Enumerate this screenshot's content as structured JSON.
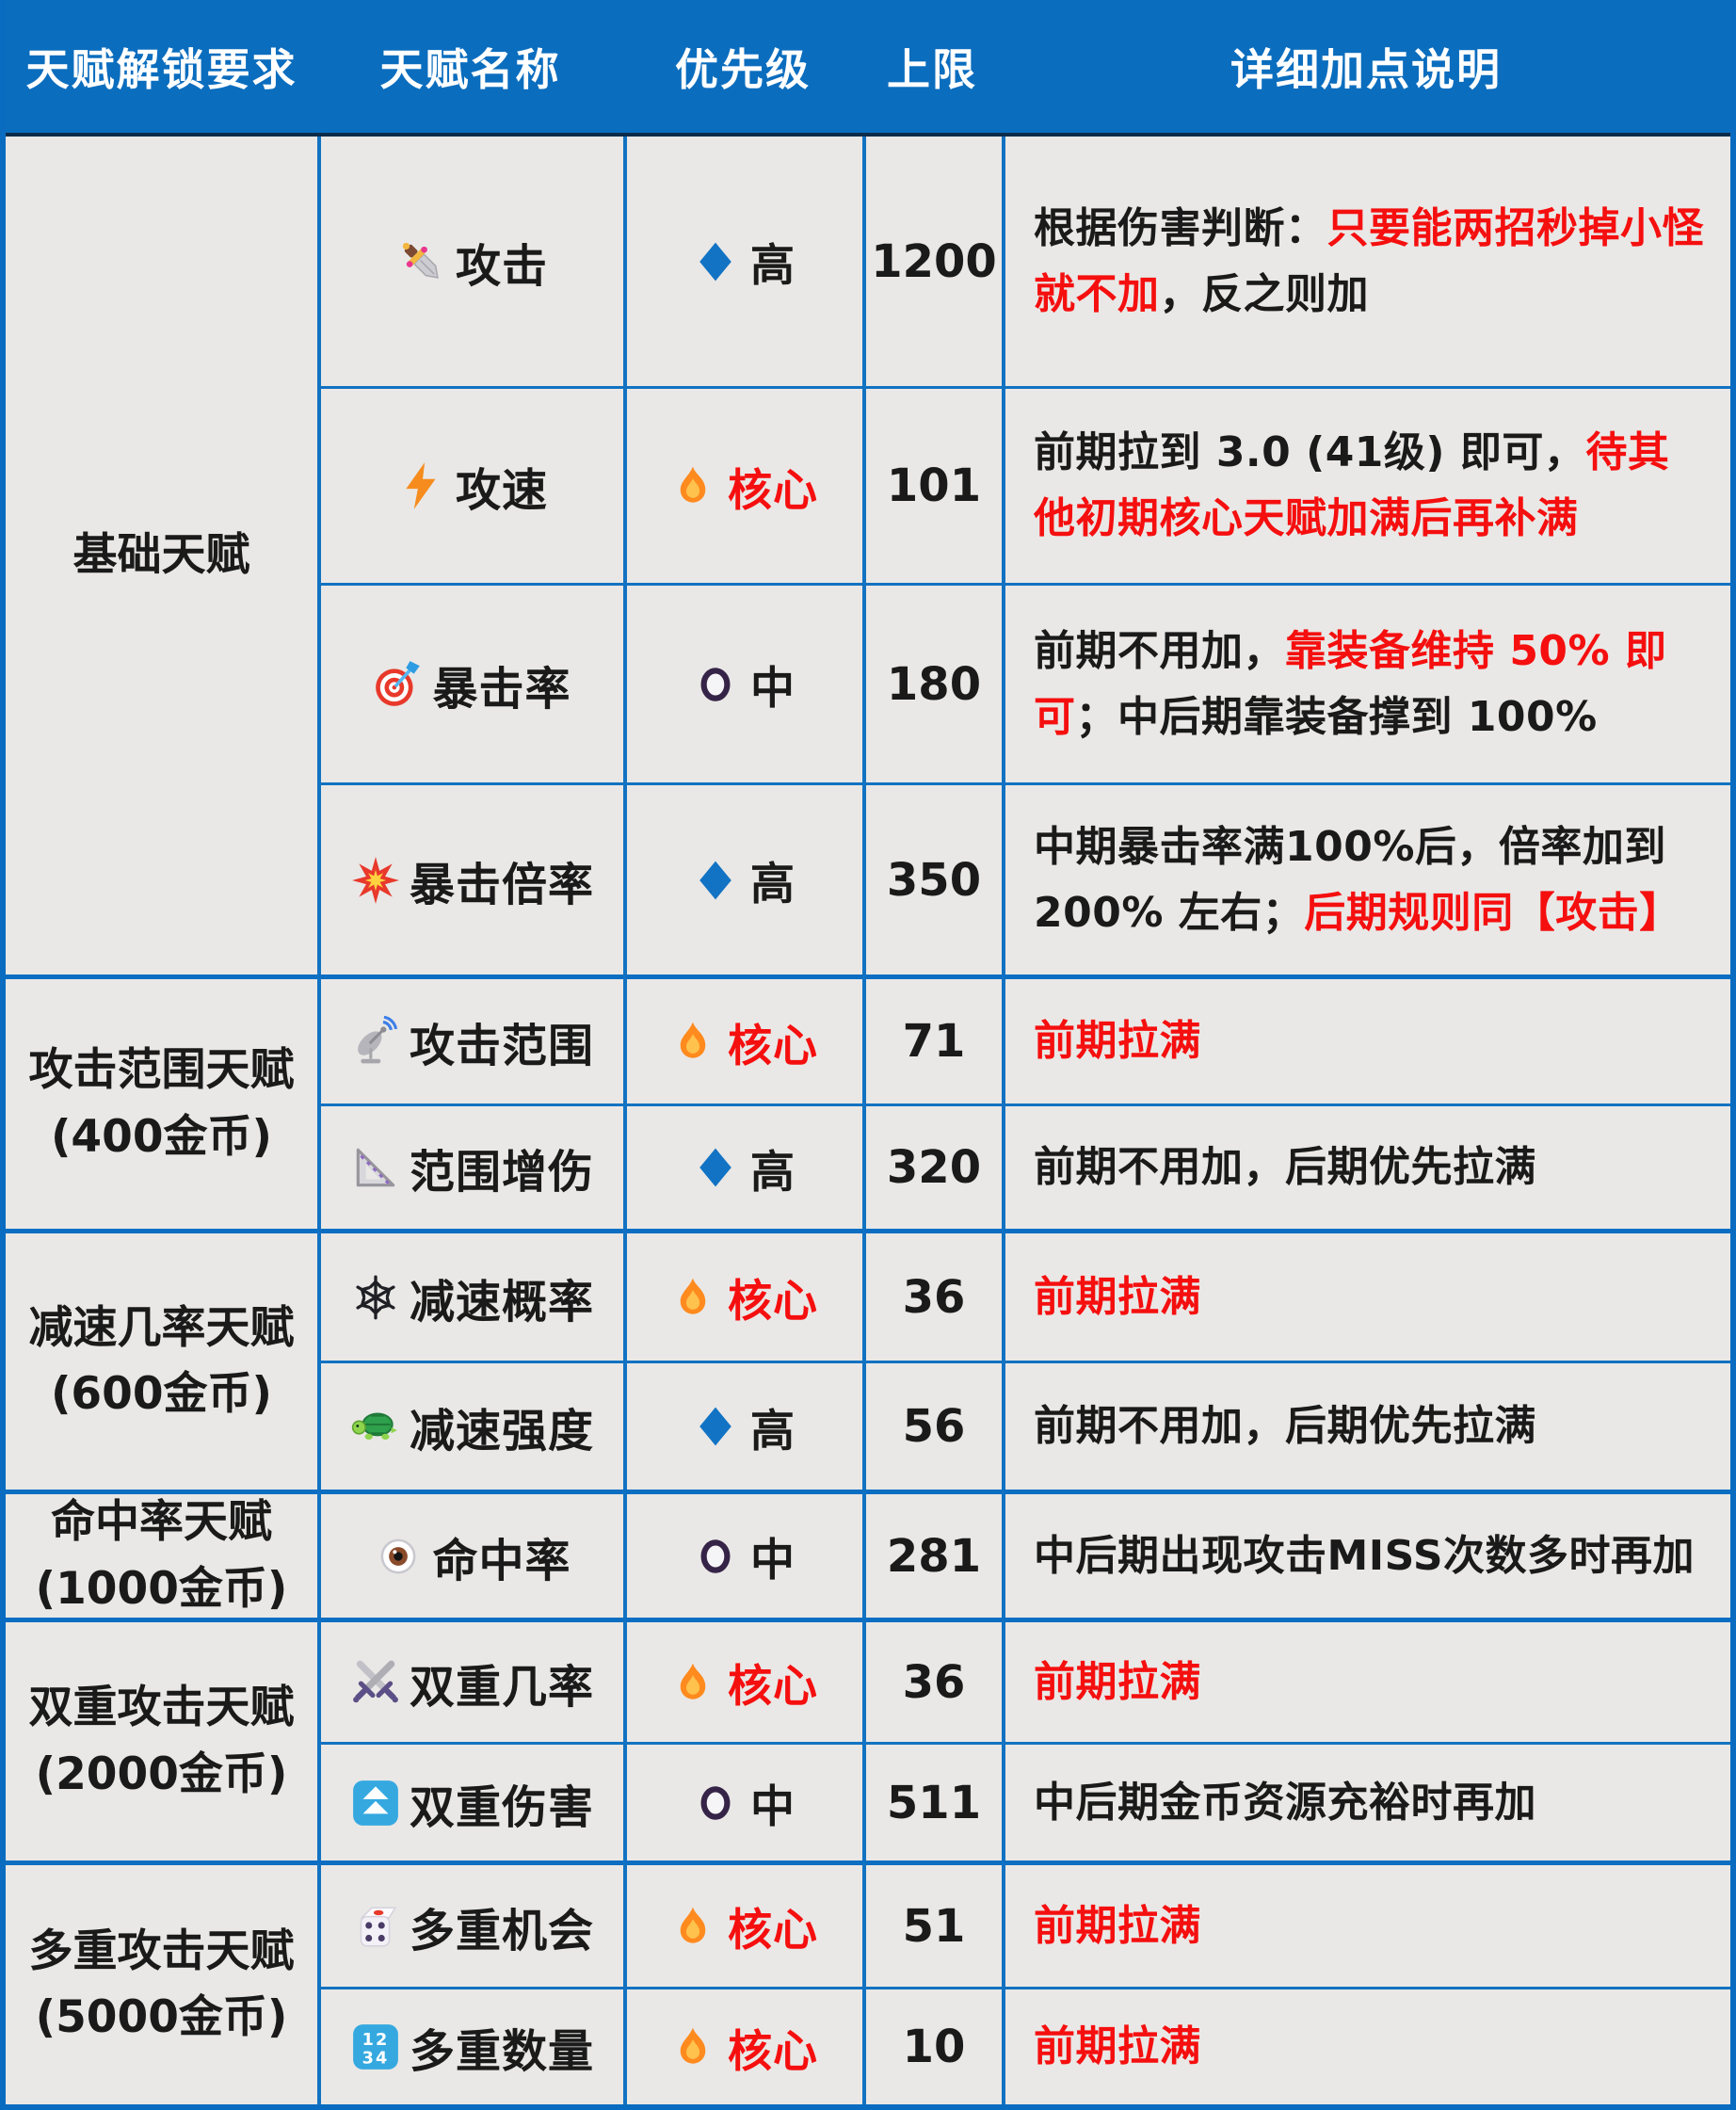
{
  "header": {
    "columns": [
      "天赋解锁要求",
      "天赋名称",
      "优先级",
      "上限",
      "详细加点说明"
    ]
  },
  "colors": {
    "header_bg": "#0B6DBE",
    "cell_bg": "#E9E8E6",
    "grid_border": "#1272C2",
    "group_border": "#0C6EC2",
    "red_text": "#F50F0F",
    "core_flame": "#FF8A1E",
    "high_diamond": "#1273C4",
    "medium_ring": "#352447"
  },
  "groups": [
    {
      "requirement": "基础天赋",
      "cost": null,
      "rows": [
        {
          "icon": "dagger-icon",
          "name": "攻击",
          "priority": {
            "icon": "flame-diamond",
            "iconName": "blue-diamond-icon",
            "label": "高",
            "core": false
          },
          "cap": "1200",
          "desc": [
            {
              "text": "根据伤害判断：",
              "red": false
            },
            {
              "text": "只要能两招秒掉小怪就不加",
              "red": true
            },
            {
              "text": "，反之则加",
              "red": false
            }
          ]
        },
        {
          "icon": "lightning-icon",
          "name": "攻速",
          "priority": {
            "iconName": "flame-icon",
            "label": "核心",
            "core": true
          },
          "cap": "101",
          "desc": [
            {
              "text": "前期拉到 3.0 (41级) 即可，",
              "red": false
            },
            {
              "text": "待其他初期核心天赋加满后再补满",
              "red": true
            }
          ]
        },
        {
          "icon": "target-icon",
          "name": "暴击率",
          "priority": {
            "iconName": "circle-icon",
            "label": "中",
            "core": false
          },
          "cap": "180",
          "desc": [
            {
              "text": "前期不用加，",
              "red": false
            },
            {
              "text": "靠装备维持 50% 即可",
              "red": true
            },
            {
              "text": "；中后期靠装备撑到 100%",
              "red": false
            }
          ]
        },
        {
          "icon": "collision-icon",
          "name": "暴击倍率",
          "priority": {
            "iconName": "blue-diamond-icon",
            "label": "高",
            "core": false
          },
          "cap": "350",
          "desc": [
            {
              "text": "中期暴击率满100%后，倍率加到 200% 左右；",
              "red": false
            },
            {
              "text": "后期规则同【攻击】",
              "red": true
            }
          ]
        }
      ]
    },
    {
      "requirement": "攻击范围天赋",
      "cost": "(400金币)",
      "rows": [
        {
          "icon": "satellite-icon",
          "name": "攻击范围",
          "priority": {
            "iconName": "flame-icon",
            "label": "核心",
            "core": true
          },
          "cap": "71",
          "desc": [
            {
              "text": "前期拉满",
              "red": true
            }
          ]
        },
        {
          "icon": "ruler-icon",
          "name": "范围增伤",
          "priority": {
            "iconName": "blue-diamond-icon",
            "label": "高",
            "core": false
          },
          "cap": "320",
          "desc": [
            {
              "text": "前期不用加，后期优先拉满",
              "red": false
            }
          ]
        }
      ]
    },
    {
      "requirement": "减速几率天赋",
      "cost": "(600金币)",
      "rows": [
        {
          "icon": "snowflake-icon",
          "name": "减速概率",
          "priority": {
            "iconName": "flame-icon",
            "label": "核心",
            "core": true
          },
          "cap": "36",
          "desc": [
            {
              "text": "前期拉满",
              "red": true
            }
          ]
        },
        {
          "icon": "turtle-icon",
          "name": "减速强度",
          "priority": {
            "iconName": "blue-diamond-icon",
            "label": "高",
            "core": false
          },
          "cap": "56",
          "desc": [
            {
              "text": "前期不用加，后期优先拉满",
              "red": false
            }
          ]
        }
      ]
    },
    {
      "requirement": "命中率天赋",
      "cost": "(1000金币)",
      "rows": [
        {
          "icon": "eye-icon",
          "name": "命中率",
          "priority": {
            "iconName": "circle-icon",
            "label": "中",
            "core": false
          },
          "cap": "281",
          "desc": [
            {
              "text": "中后期出现攻击MISS次数多时再加",
              "red": false
            }
          ]
        }
      ]
    },
    {
      "requirement": "双重攻击天赋",
      "cost": "(2000金币)",
      "rows": [
        {
          "icon": "crossed-swords-icon",
          "name": "双重几率",
          "priority": {
            "iconName": "flame-icon",
            "label": "核心",
            "core": true
          },
          "cap": "36",
          "desc": [
            {
              "text": "前期拉满",
              "red": true
            }
          ]
        },
        {
          "icon": "double-up-icon",
          "name": "双重伤害",
          "priority": {
            "iconName": "circle-icon",
            "label": "中",
            "core": false
          },
          "cap": "511",
          "desc": [
            {
              "text": "中后期金币资源充裕时再加",
              "red": false
            }
          ]
        }
      ]
    },
    {
      "requirement": "多重攻击天赋",
      "cost": "(5000金币)",
      "rows": [
        {
          "icon": "dice-icon",
          "name": "多重机会",
          "priority": {
            "iconName": "flame-icon",
            "label": "核心",
            "core": true
          },
          "cap": "51",
          "desc": [
            {
              "text": "前期拉满",
              "red": true
            }
          ]
        },
        {
          "icon": "numbers-icon",
          "name": "多重数量",
          "priority": {
            "iconName": "flame-icon",
            "label": "核心",
            "core": true
          },
          "cap": "10",
          "desc": [
            {
              "text": "前期拉满",
              "red": true
            }
          ]
        }
      ]
    }
  ]
}
